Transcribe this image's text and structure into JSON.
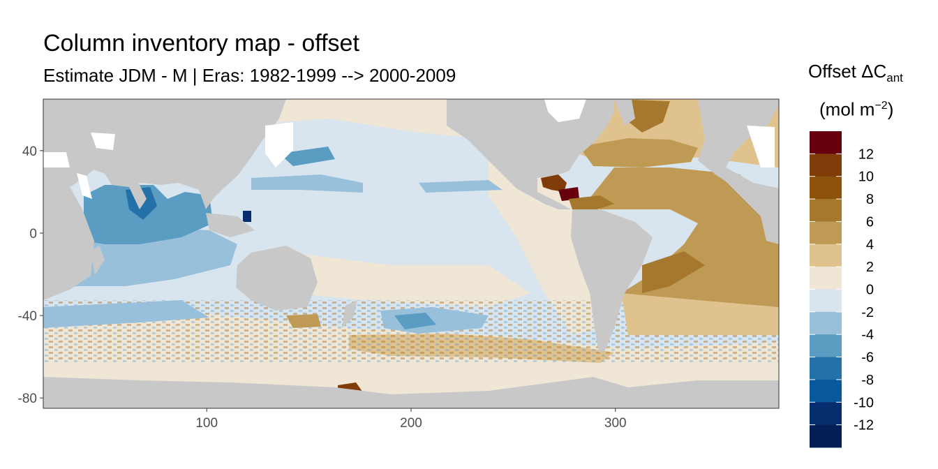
{
  "title": "Column inventory map - offset",
  "subtitle": "Estimate JDM - M | Eras: 1982-1999 --> 2000-2009",
  "legend": {
    "title_main": "Offset ΔC",
    "title_sub": "ant",
    "unit_prefix": "(mol m",
    "unit_sup": "−2",
    "unit_suffix": ")",
    "labels": [
      "12",
      "10",
      "8",
      "6",
      "4",
      "2",
      "0",
      "-2",
      "-4",
      "-6",
      "-8",
      "-10",
      "-12"
    ],
    "colors": [
      "#67000d",
      "#7f3b08",
      "#8c510a",
      "#a6782e",
      "#bf9a55",
      "#dfc28e",
      "#efe6d6",
      "#d8e4ee",
      "#99c0db",
      "#5a9cc2",
      "#2471a8",
      "#08589e",
      "#062e6e",
      "#031f56"
    ]
  },
  "chart_data": {
    "type": "heatmap",
    "title": "Column inventory map - offset",
    "subtitle": "Estimate JDM - M | Eras: 1982-1999 --> 2000-2009",
    "xlabel": "",
    "ylabel": "",
    "xlim": [
      20,
      380
    ],
    "ylim": [
      -85,
      65
    ],
    "x_ticks": [
      100,
      200,
      300
    ],
    "y_ticks": [
      40,
      0,
      -40,
      -80
    ],
    "colorbar_title": "Offset ΔC_ant (mol m^-2)",
    "colorbar_breaks": [
      12,
      10,
      8,
      6,
      4,
      2,
      0,
      -2,
      -4,
      -6,
      -8,
      -10,
      -12
    ],
    "land_color": "#c8c8c8",
    "regions": [
      {
        "name": "north-pacific",
        "value": -1
      },
      {
        "name": "tropical-pacific",
        "value": -1
      },
      {
        "name": "indian-ocean",
        "value": -4
      },
      {
        "name": "bay-of-bengal",
        "value": -5
      },
      {
        "name": "southern-ocean-pacific",
        "value": 1
      },
      {
        "name": "south-pacific-patch",
        "value": -4
      },
      {
        "name": "north-atlantic",
        "value": 6
      },
      {
        "name": "gulf-of-mexico",
        "value": 11
      },
      {
        "name": "south-atlantic",
        "value": 5
      },
      {
        "name": "southern-ocean-atlantic",
        "value": 2
      }
    ]
  }
}
